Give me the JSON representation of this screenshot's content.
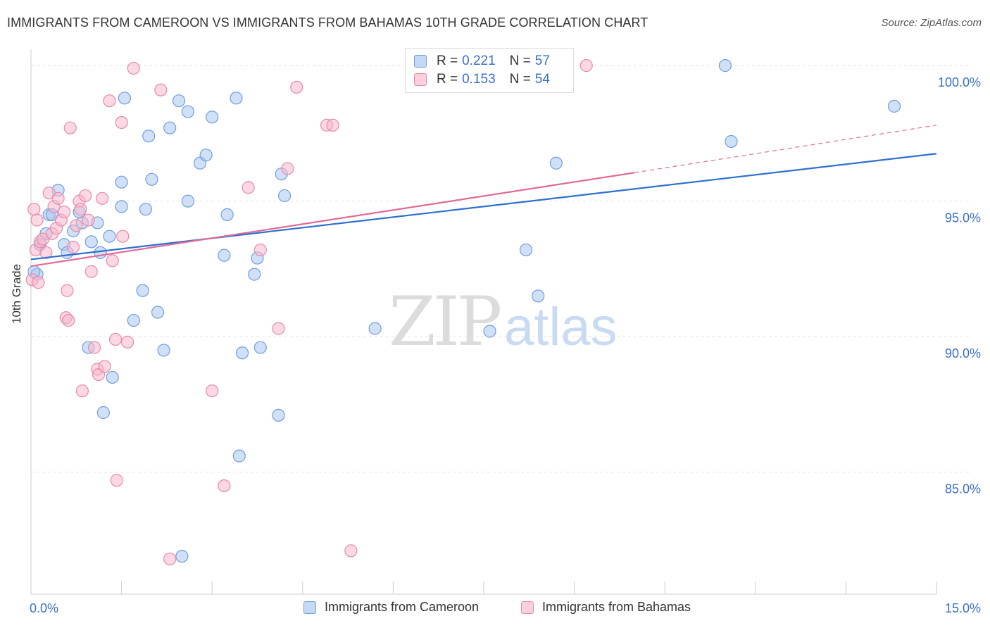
{
  "title": "IMMIGRANTS FROM CAMEROON VS IMMIGRANTS FROM BAHAMAS 10TH GRADE CORRELATION CHART",
  "source": "Source: ZipAtlas.com",
  "watermark": {
    "zip": "ZIP",
    "atlas": "atlas"
  },
  "colors": {
    "blue_fill": "#a9c7f0",
    "blue_stroke": "#6f9ee0",
    "blue_line": "#2f6fcf",
    "pink_fill": "#f7b8cc",
    "pink_stroke": "#e88aa8",
    "pink_line": "#e06a96",
    "tick_label": "#3b6fc6",
    "grid": "#e2e2e2"
  },
  "legend_top": [
    {
      "r_label": "R =",
      "r_value": "0.221",
      "n_label": "N =",
      "n_value": "57"
    },
    {
      "r_label": "R =",
      "r_value": "0.153",
      "n_label": "N =",
      "n_value": "54"
    }
  ],
  "legend_bottom": [
    "Immigrants from Cameroon",
    "Immigrants from Bahamas"
  ],
  "chart_data": {
    "type": "scatter",
    "title": "IMMIGRANTS FROM CAMEROON VS IMMIGRANTS FROM BAHAMAS 10TH GRADE CORRELATION CHART",
    "xlabel": "",
    "ylabel": "10th Grade",
    "xlim": [
      0,
      15
    ],
    "ylim": [
      80.5,
      100.6
    ],
    "x_tick_labels": [
      "0.0%",
      "15.0%"
    ],
    "y_ticks": [
      85,
      90,
      95,
      100
    ],
    "y_tick_labels": [
      "85.0%",
      "90.0%",
      "95.0%",
      "100.0%"
    ],
    "grid": true,
    "series": [
      {
        "name": "Immigrants from Cameroon",
        "r": 0.221,
        "n": 57,
        "trend": {
          "x0": 0.0,
          "y0": 92.85,
          "x1": 15.0,
          "y1": 96.75
        },
        "points": [
          [
            0.1,
            92.3
          ],
          [
            0.15,
            93.4
          ],
          [
            0.25,
            93.8
          ],
          [
            0.3,
            94.5
          ],
          [
            0.35,
            94.5
          ],
          [
            0.45,
            95.4
          ],
          [
            0.55,
            93.4
          ],
          [
            0.6,
            93.1
          ],
          [
            0.7,
            93.9
          ],
          [
            0.8,
            94.6
          ],
          [
            0.85,
            94.2
          ],
          [
            0.95,
            89.6
          ],
          [
            1.0,
            93.5
          ],
          [
            1.1,
            94.2
          ],
          [
            1.15,
            93.1
          ],
          [
            1.2,
            87.2
          ],
          [
            1.3,
            93.7
          ],
          [
            1.35,
            88.5
          ],
          [
            1.5,
            94.8
          ],
          [
            1.5,
            95.7
          ],
          [
            1.55,
            98.8
          ],
          [
            1.7,
            90.6
          ],
          [
            1.85,
            91.7
          ],
          [
            1.9,
            94.7
          ],
          [
            1.95,
            97.4
          ],
          [
            2.0,
            95.8
          ],
          [
            2.1,
            90.9
          ],
          [
            2.2,
            89.5
          ],
          [
            2.3,
            97.7
          ],
          [
            2.45,
            98.7
          ],
          [
            2.5,
            81.9
          ],
          [
            2.6,
            95.0
          ],
          [
            2.6,
            98.3
          ],
          [
            2.8,
            96.4
          ],
          [
            2.9,
            96.7
          ],
          [
            3.0,
            98.1
          ],
          [
            3.2,
            93.0
          ],
          [
            3.25,
            94.5
          ],
          [
            3.4,
            98.8
          ],
          [
            3.45,
            85.6
          ],
          [
            3.5,
            89.4
          ],
          [
            3.7,
            92.3
          ],
          [
            3.75,
            92.9
          ],
          [
            3.8,
            89.6
          ],
          [
            4.1,
            87.1
          ],
          [
            4.15,
            96.0
          ],
          [
            4.2,
            95.2
          ],
          [
            5.7,
            90.3
          ],
          [
            6.5,
            99.3
          ],
          [
            7.6,
            90.2
          ],
          [
            8.2,
            93.2
          ],
          [
            8.4,
            91.5
          ],
          [
            8.7,
            96.4
          ],
          [
            11.5,
            100.0
          ],
          [
            11.6,
            97.2
          ],
          [
            14.3,
            98.5
          ],
          [
            0.05,
            92.4
          ]
        ]
      },
      {
        "name": "Immigrants from Bahamas",
        "r": 0.153,
        "n": 54,
        "trend": {
          "x0": 0.0,
          "y0": 92.6,
          "x1": 10.0,
          "y1": 96.05,
          "dash_x1": 15.0,
          "dash_y1": 97.8
        },
        "points": [
          [
            0.02,
            92.1
          ],
          [
            0.05,
            94.7
          ],
          [
            0.08,
            93.2
          ],
          [
            0.1,
            94.3
          ],
          [
            0.15,
            93.5
          ],
          [
            0.2,
            93.6
          ],
          [
            0.25,
            93.1
          ],
          [
            0.3,
            95.3
          ],
          [
            0.35,
            93.8
          ],
          [
            0.38,
            94.8
          ],
          [
            0.42,
            94.0
          ],
          [
            0.45,
            95.1
          ],
          [
            0.5,
            94.3
          ],
          [
            0.55,
            94.6
          ],
          [
            0.58,
            90.7
          ],
          [
            0.6,
            91.7
          ],
          [
            0.62,
            90.6
          ],
          [
            0.65,
            97.7
          ],
          [
            0.7,
            93.3
          ],
          [
            0.75,
            94.1
          ],
          [
            0.8,
            95.0
          ],
          [
            0.82,
            94.7
          ],
          [
            0.85,
            88.0
          ],
          [
            0.9,
            95.2
          ],
          [
            0.95,
            94.3
          ],
          [
            1.0,
            92.4
          ],
          [
            1.05,
            89.6
          ],
          [
            1.1,
            88.8
          ],
          [
            1.12,
            88.6
          ],
          [
            1.18,
            95.1
          ],
          [
            1.22,
            88.9
          ],
          [
            1.3,
            98.7
          ],
          [
            1.35,
            92.8
          ],
          [
            1.4,
            89.9
          ],
          [
            1.42,
            84.7
          ],
          [
            1.5,
            97.9
          ],
          [
            1.52,
            93.7
          ],
          [
            1.6,
            89.8
          ],
          [
            1.7,
            99.9
          ],
          [
            2.15,
            99.1
          ],
          [
            2.3,
            81.8
          ],
          [
            3.0,
            88.0
          ],
          [
            3.2,
            84.5
          ],
          [
            3.6,
            95.5
          ],
          [
            3.8,
            93.2
          ],
          [
            4.1,
            90.3
          ],
          [
            4.25,
            96.2
          ],
          [
            4.4,
            99.2
          ],
          [
            4.9,
            97.8
          ],
          [
            5.0,
            97.8
          ],
          [
            5.3,
            82.1
          ],
          [
            6.5,
            100.0
          ],
          [
            9.2,
            100.0
          ],
          [
            0.12,
            92.0
          ]
        ]
      }
    ]
  }
}
